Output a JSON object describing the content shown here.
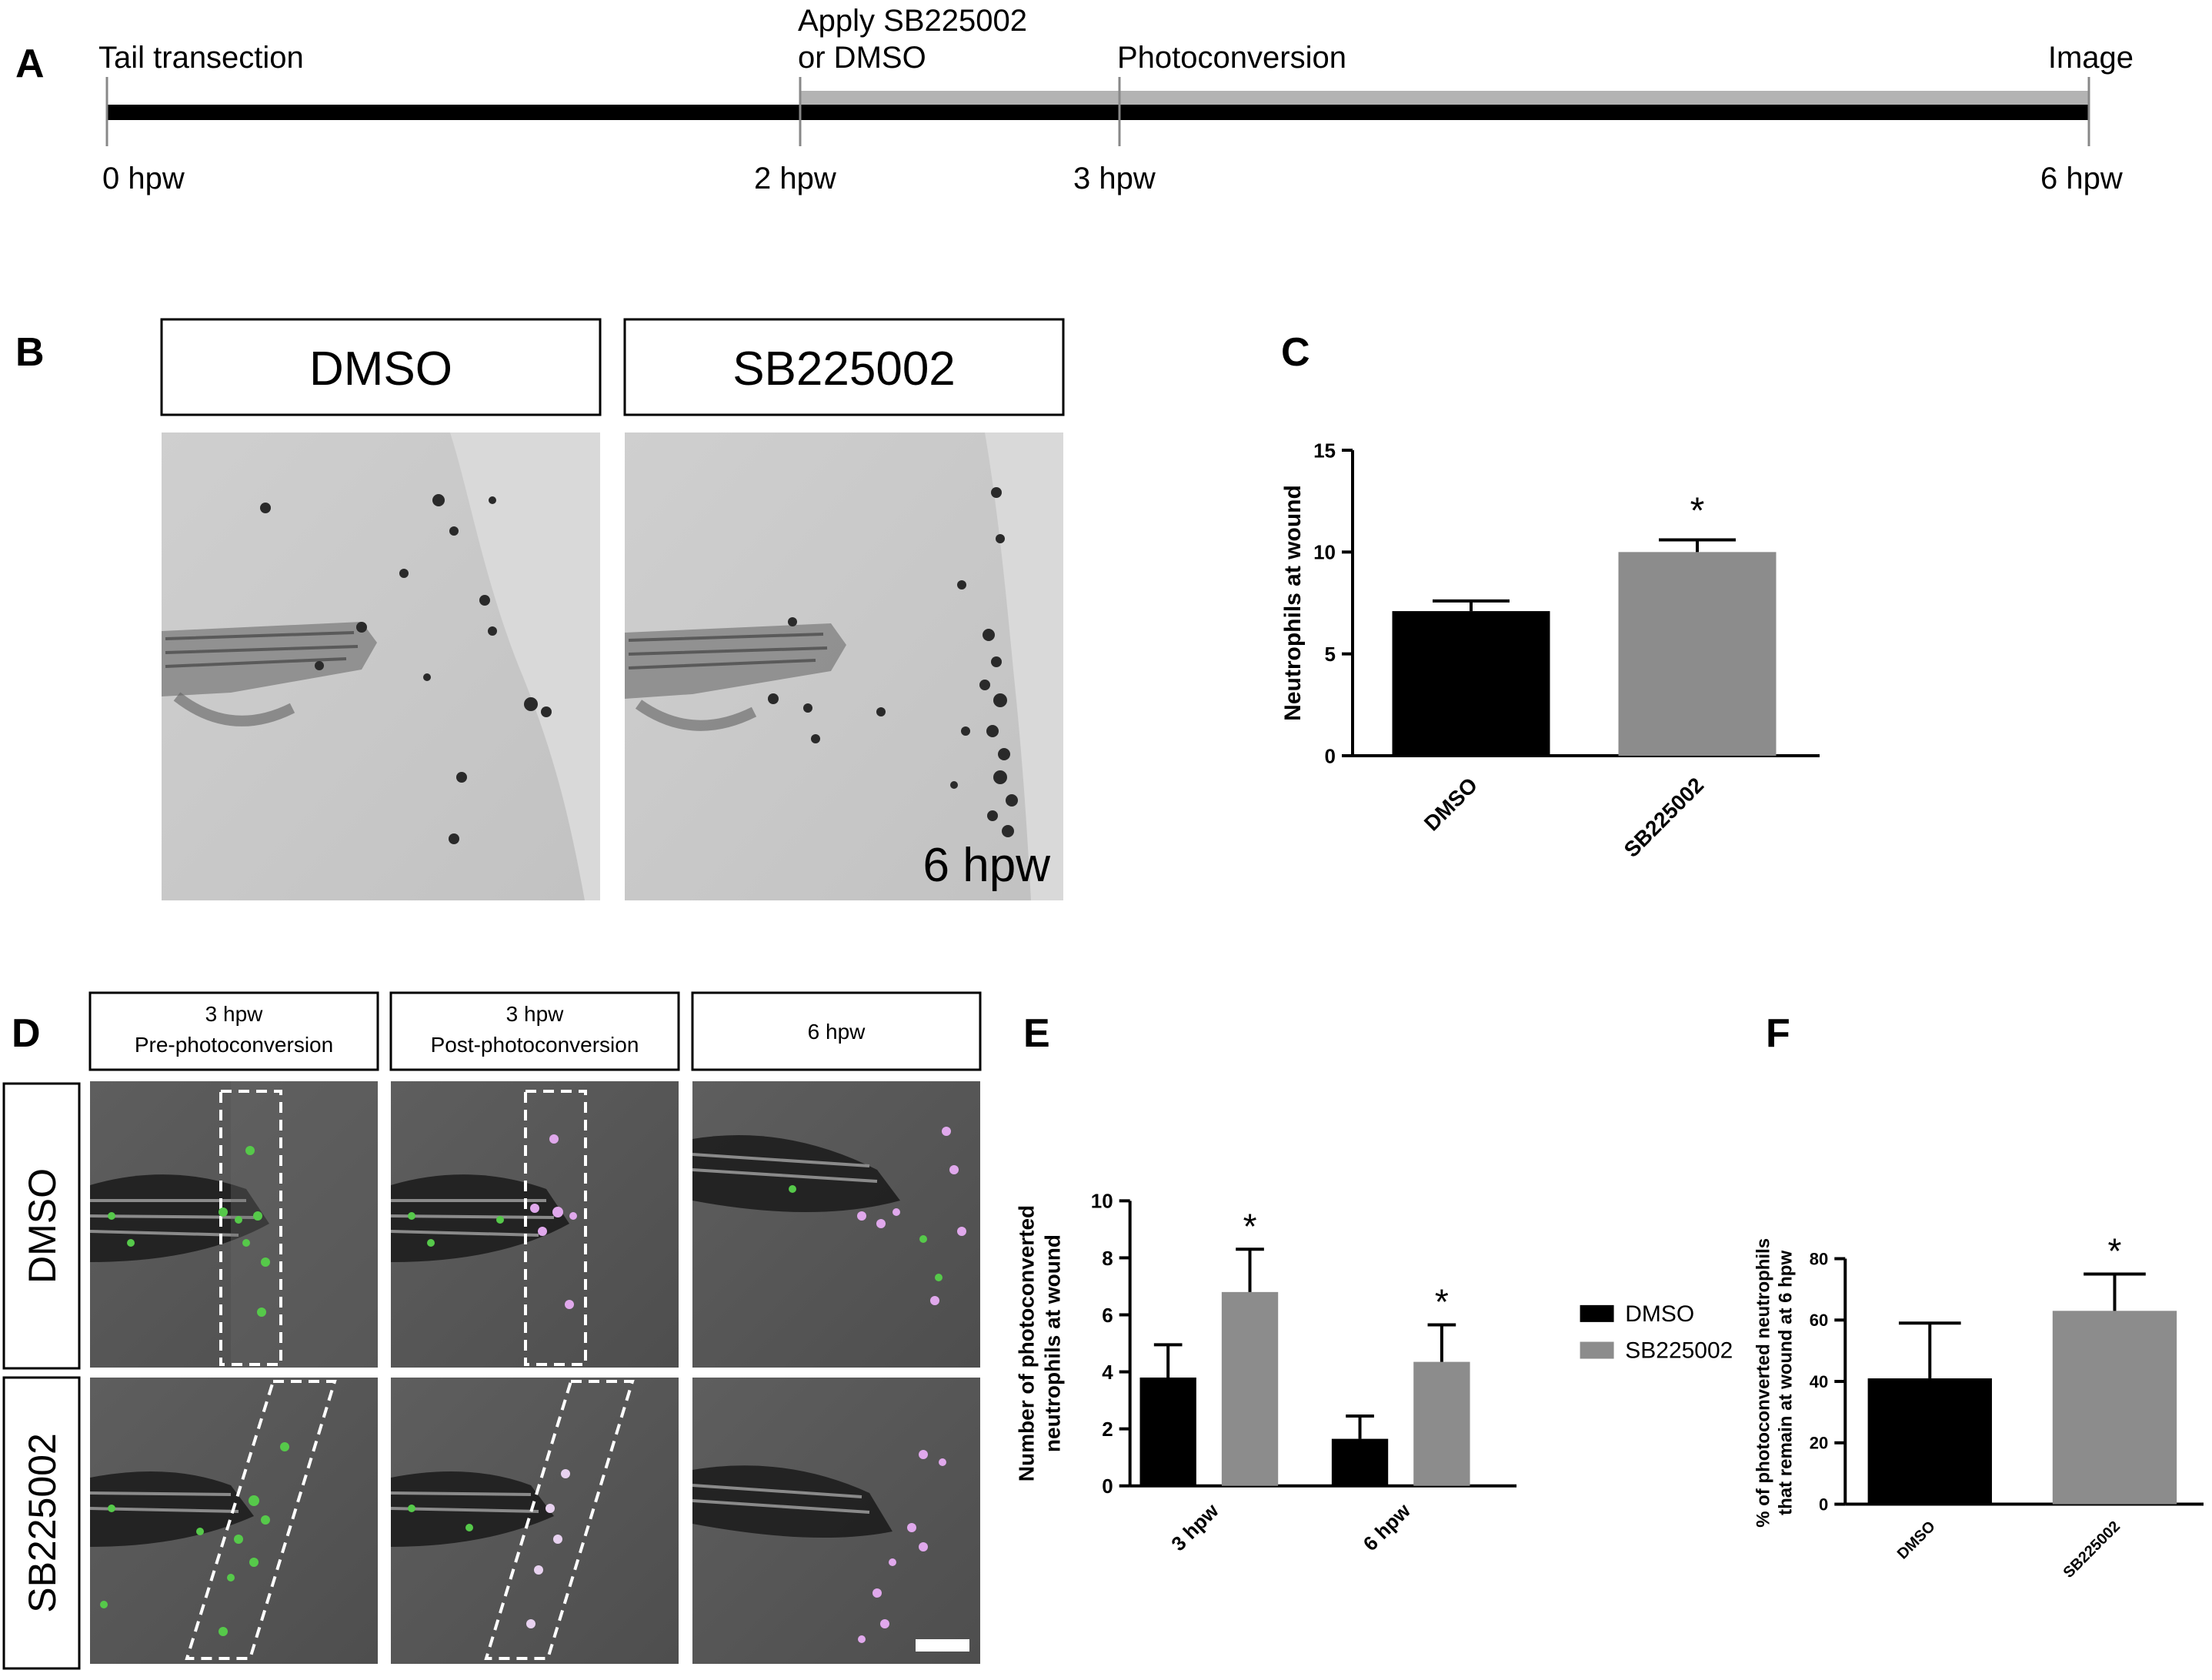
{
  "panels": {
    "A": "A",
    "B": "B",
    "C": "C",
    "D": "D",
    "E": "E",
    "F": "F"
  },
  "timeline": {
    "events": [
      "Tail transection",
      "Apply SB225002",
      "or DMSO",
      "Photoconversion",
      "Image"
    ],
    "ticks": [
      "0 hpw",
      "2 hpw",
      "3 hpw",
      "6 hpw"
    ],
    "tick_values_hpw": [
      0,
      2,
      3,
      6
    ],
    "treatment_start_hpw": 2,
    "treatment_end_hpw": 6
  },
  "panel_b": {
    "headers": [
      "DMSO",
      "SB225002"
    ],
    "time_label": "6 hpw"
  },
  "panel_d": {
    "column_headers": [
      {
        "line1": "3 hpw",
        "line2": "Pre-photoconversion"
      },
      {
        "line1": "3 hpw",
        "line2": "Post-photoconversion"
      },
      {
        "line1": "6 hpw",
        "line2": ""
      }
    ],
    "row_headers": [
      "DMSO",
      "SB225002"
    ]
  },
  "colors": {
    "dmso": "#000000",
    "sb225002": "#8c8c8c",
    "treatment_bar": "#b3b3b3",
    "green_cells": "#56c94a",
    "magenta_cells": "#e0a8ec"
  },
  "chart_data": [
    {
      "panel": "C",
      "type": "bar",
      "categories": [
        "DMSO",
        "SB225002"
      ],
      "values": [
        7.1,
        10.0
      ],
      "errors": [
        0.5,
        0.6
      ],
      "significance": [
        "",
        "*"
      ],
      "ylabel": "Neutrophils at wound",
      "ylim": [
        0,
        15
      ],
      "yticks": [
        0,
        5,
        10,
        15
      ],
      "grid": false
    },
    {
      "panel": "E",
      "type": "bar",
      "categories": [
        "3 hpw",
        "6 hpw"
      ],
      "series": [
        {
          "name": "DMSO",
          "values": [
            3.8,
            1.65
          ],
          "errors": [
            1.15,
            0.8
          ],
          "significance": [
            "",
            ""
          ]
        },
        {
          "name": "SB225002",
          "values": [
            6.8,
            4.35
          ],
          "errors": [
            1.5,
            1.3
          ],
          "significance": [
            "*",
            "*"
          ]
        }
      ],
      "ylabel_lines": [
        "Number of photoconverted",
        "neutrophils at wound"
      ],
      "ylim": [
        0,
        10
      ],
      "yticks": [
        0,
        2,
        4,
        6,
        8,
        10
      ],
      "legend_position": "right",
      "grid": false
    },
    {
      "panel": "F",
      "type": "bar",
      "categories": [
        "DMSO",
        "SB225002"
      ],
      "values": [
        41,
        63
      ],
      "errors": [
        18,
        12
      ],
      "significance": [
        "",
        "*"
      ],
      "ylabel_lines": [
        "% of photoconverted neutrophils",
        "that remain at wound at 6 hpw"
      ],
      "ylim": [
        0,
        80
      ],
      "yticks": [
        0,
        20,
        40,
        60,
        80
      ],
      "grid": false
    }
  ]
}
